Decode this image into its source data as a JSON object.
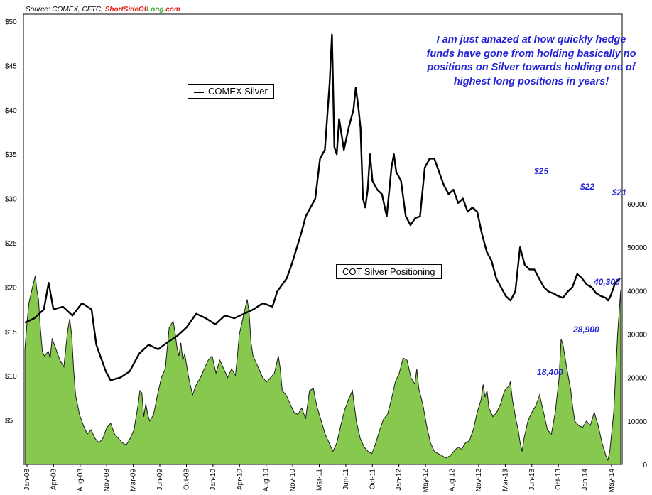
{
  "source": {
    "prefix": "Source: COMEX, CFTC, ",
    "brand_a": "ShortSideOf",
    "brand_b": "Long",
    "brand_c": ".com"
  },
  "annotation": "I am just amazed  at how quickly hedge funds have gone from holding basically no positions on Silver towards holding one of highest long positions in years!",
  "colors": {
    "silver_line": "#000000",
    "cot_fill": "#86c94e",
    "cot_stroke": "#1a1a1a",
    "annotation": "#2323d6"
  },
  "chart_data": {
    "type": "line+area",
    "legend": {
      "silver": "COMEX Silver",
      "cot": "COT Silver Positioning"
    },
    "left_axis_ticks": [
      "$50",
      "$45",
      "$40",
      "$35",
      "$30",
      "$25",
      "$20",
      "$15",
      "$10",
      "$5"
    ],
    "right_axis_ticks": [
      "60000",
      "50000",
      "40000",
      "30000",
      "20000",
      "10000",
      "0"
    ],
    "x_ticks": [
      "Jan-08",
      "Apr-08",
      "Aug-08",
      "Nov-08",
      "Mar-09",
      "Jun-09",
      "Oct-09",
      "Jan-10",
      "Apr-10",
      "Aug-10",
      "Nov-10",
      "Mar-11",
      "Jun-11",
      "Oct-11",
      "Jan-12",
      "May-12",
      "Aug-12",
      "Nov-12",
      "Mar-13",
      "Jun-13",
      "Oct-13",
      "Jan-14",
      "May-14"
    ],
    "silver_ylim": [
      0,
      50
    ],
    "cot_ylim": [
      0,
      60000
    ],
    "silver": [
      [
        0,
        16
      ],
      [
        2,
        16.5
      ],
      [
        4,
        17.5
      ],
      [
        5,
        20.5
      ],
      [
        6,
        17.5
      ],
      [
        8,
        17.8
      ],
      [
        10,
        16.8
      ],
      [
        12,
        18.2
      ],
      [
        14,
        17.5
      ],
      [
        15,
        13.5
      ],
      [
        17,
        10.5
      ],
      [
        18,
        9.5
      ],
      [
        20,
        9.8
      ],
      [
        22,
        10.5
      ],
      [
        24,
        12.5
      ],
      [
        26,
        13.5
      ],
      [
        28,
        13
      ],
      [
        30,
        13.8
      ],
      [
        32,
        14.5
      ],
      [
        34,
        15.5
      ],
      [
        36,
        17
      ],
      [
        38,
        16.5
      ],
      [
        40,
        15.8
      ],
      [
        42,
        16.8
      ],
      [
        44,
        16.5
      ],
      [
        46,
        17
      ],
      [
        48,
        17.5
      ],
      [
        50,
        18.2
      ],
      [
        52,
        17.8
      ],
      [
        53,
        19.5
      ],
      [
        55,
        21
      ],
      [
        56,
        22.5
      ],
      [
        58,
        26
      ],
      [
        59,
        28
      ],
      [
        61,
        30
      ],
      [
        62,
        34.5
      ],
      [
        63,
        35.5
      ],
      [
        64,
        43
      ],
      [
        64.5,
        48.5
      ],
      [
        65,
        35.8
      ],
      [
        65.5,
        35
      ],
      [
        66,
        39
      ],
      [
        67,
        35.5
      ],
      [
        68,
        38
      ],
      [
        69,
        40
      ],
      [
        69.5,
        42.5
      ],
      [
        70,
        40.5
      ],
      [
        70.5,
        38
      ],
      [
        71,
        30
      ],
      [
        71.5,
        29
      ],
      [
        72,
        31
      ],
      [
        72.5,
        35
      ],
      [
        73,
        32
      ],
      [
        74,
        31
      ],
      [
        75,
        30.5
      ],
      [
        76,
        28
      ],
      [
        77,
        33.5
      ],
      [
        77.5,
        35
      ],
      [
        78,
        33
      ],
      [
        79,
        32
      ],
      [
        80,
        28
      ],
      [
        81,
        27
      ],
      [
        82,
        27.8
      ],
      [
        83,
        28
      ],
      [
        84,
        33.5
      ],
      [
        85,
        34.5
      ],
      [
        86,
        34.5
      ],
      [
        87,
        33
      ],
      [
        88,
        31.5
      ],
      [
        89,
        30.5
      ],
      [
        90,
        31
      ],
      [
        91,
        29.5
      ],
      [
        92,
        30
      ],
      [
        93,
        28.5
      ],
      [
        94,
        29
      ],
      [
        95,
        28.5
      ],
      [
        96,
        26
      ],
      [
        97,
        24
      ],
      [
        98,
        23
      ],
      [
        99,
        21
      ],
      [
        100,
        20
      ],
      [
        101,
        19
      ],
      [
        102,
        18.5
      ],
      [
        103,
        19.5
      ],
      [
        104,
        24.5
      ],
      [
        105,
        22.5
      ],
      [
        106,
        22
      ],
      [
        107,
        22
      ],
      [
        108,
        21
      ],
      [
        109,
        20
      ],
      [
        110,
        19.5
      ],
      [
        111,
        19.3
      ],
      [
        112,
        19
      ],
      [
        113,
        18.8
      ],
      [
        114,
        19.5
      ],
      [
        115,
        20
      ],
      [
        116,
        21.5
      ],
      [
        117,
        21
      ],
      [
        118,
        20.3
      ],
      [
        119,
        20
      ],
      [
        120,
        19.3
      ],
      [
        121,
        19
      ],
      [
        122,
        18.8
      ],
      [
        122.5,
        18.5
      ],
      [
        123,
        19
      ],
      [
        124,
        20.5
      ],
      [
        125,
        21
      ]
    ],
    "cot": [
      [
        0,
        26.5
      ],
      [
        0.5,
        32
      ],
      [
        1,
        37
      ],
      [
        2,
        41
      ],
      [
        2.7,
        43.5
      ],
      [
        3,
        40.5
      ],
      [
        3.5,
        38
      ],
      [
        4,
        31
      ],
      [
        4.5,
        26
      ],
      [
        5,
        25
      ],
      [
        6,
        26
      ],
      [
        6.5,
        24.5
      ],
      [
        7,
        29
      ],
      [
        8,
        26.5
      ],
      [
        9,
        24
      ],
      [
        10,
        22.5
      ],
      [
        11,
        31
      ],
      [
        11.5,
        33.5
      ],
      [
        12,
        30
      ],
      [
        12.5,
        22
      ],
      [
        13,
        16
      ],
      [
        14,
        11.5
      ],
      [
        15,
        9
      ],
      [
        16,
        7
      ],
      [
        17,
        8
      ],
      [
        18,
        6
      ],
      [
        19,
        5
      ],
      [
        20,
        6
      ],
      [
        21,
        8.5
      ],
      [
        22,
        9.5
      ],
      [
        23,
        7
      ],
      [
        24,
        6
      ],
      [
        25,
        5
      ],
      [
        26,
        4.5
      ],
      [
        27,
        6
      ],
      [
        28,
        8
      ],
      [
        29,
        13.5
      ],
      [
        29.5,
        17
      ],
      [
        30,
        16.5
      ],
      [
        30.5,
        11
      ],
      [
        31,
        14
      ],
      [
        31.5,
        11.5
      ],
      [
        32,
        10
      ],
      [
        33,
        11.5
      ],
      [
        34,
        16
      ],
      [
        35,
        20
      ],
      [
        36,
        22
      ],
      [
        37,
        31.5
      ],
      [
        38,
        33
      ],
      [
        38.5,
        30.5
      ],
      [
        39,
        27
      ],
      [
        39.5,
        25
      ],
      [
        40,
        28
      ],
      [
        40.5,
        24
      ],
      [
        41,
        25.5
      ],
      [
        42,
        20
      ],
      [
        43,
        16
      ],
      [
        44,
        18.5
      ],
      [
        45,
        20
      ],
      [
        46,
        22
      ],
      [
        47,
        24
      ],
      [
        48,
        25
      ],
      [
        49,
        21
      ],
      [
        50,
        24
      ],
      [
        51,
        22
      ],
      [
        52,
        20
      ],
      [
        53,
        22
      ],
      [
        54,
        20.5
      ],
      [
        54.5,
        25
      ],
      [
        55,
        30
      ],
      [
        56,
        34
      ],
      [
        57,
        38
      ],
      [
        57.5,
        35
      ],
      [
        58,
        28
      ],
      [
        58.5,
        25
      ],
      [
        59,
        24
      ],
      [
        60,
        22
      ],
      [
        61,
        20
      ],
      [
        62,
        19
      ],
      [
        63,
        20
      ],
      [
        64,
        21
      ],
      [
        65,
        25
      ],
      [
        65.5,
        22
      ],
      [
        66,
        17
      ],
      [
        67,
        16
      ],
      [
        68,
        14
      ],
      [
        69,
        12
      ],
      [
        70,
        11.5
      ],
      [
        71,
        13
      ],
      [
        72,
        10.5
      ],
      [
        73,
        17
      ],
      [
        74,
        17.5
      ],
      [
        74.5,
        15
      ],
      [
        75,
        13
      ],
      [
        76,
        10
      ],
      [
        77,
        7
      ],
      [
        78,
        5
      ],
      [
        79,
        3
      ],
      [
        80,
        5
      ],
      [
        81,
        9
      ],
      [
        82,
        12.5
      ],
      [
        83,
        15
      ],
      [
        84,
        17
      ],
      [
        85,
        10
      ],
      [
        86,
        6
      ],
      [
        87,
        4
      ],
      [
        88,
        3
      ],
      [
        89,
        2.5
      ],
      [
        90,
        5
      ],
      [
        91,
        8
      ],
      [
        92,
        10.5
      ],
      [
        93,
        11.5
      ],
      [
        94,
        15
      ],
      [
        95,
        19
      ],
      [
        96,
        21
      ],
      [
        97,
        24.5
      ],
      [
        98,
        24
      ],
      [
        99,
        20
      ],
      [
        100,
        18.5
      ],
      [
        100.5,
        22
      ],
      [
        101,
        17.5
      ],
      [
        102,
        14
      ],
      [
        103,
        9
      ],
      [
        104,
        5
      ],
      [
        105,
        3
      ],
      [
        106,
        2.5
      ],
      [
        107,
        2
      ],
      [
        108,
        1.5
      ],
      [
        109,
        2
      ],
      [
        110,
        3
      ],
      [
        111,
        4
      ],
      [
        112,
        3.5
      ],
      [
        113,
        5
      ],
      [
        114,
        5.5
      ],
      [
        115,
        8
      ],
      [
        116,
        12
      ],
      [
        117,
        15
      ],
      [
        117.5,
        18.4
      ],
      [
        118,
        15.5
      ],
      [
        118.5,
        17
      ],
      [
        119,
        13
      ],
      [
        120,
        11
      ],
      [
        121,
        12
      ],
      [
        122,
        14
      ],
      [
        123,
        17
      ],
      [
        124,
        18
      ],
      [
        124.5,
        19
      ],
      [
        125,
        15
      ],
      [
        126,
        10
      ],
      [
        126.5,
        8
      ],
      [
        127,
        5
      ],
      [
        127.5,
        3
      ],
      [
        128,
        6
      ],
      [
        129,
        10
      ],
      [
        130,
        12
      ],
      [
        131,
        13.5
      ],
      [
        132,
        16
      ],
      [
        133,
        12
      ],
      [
        134,
        8
      ],
      [
        135,
        7
      ],
      [
        136,
        12
      ],
      [
        137,
        20
      ],
      [
        137.5,
        28.9
      ],
      [
        138,
        27.5
      ],
      [
        139,
        22
      ],
      [
        140,
        17
      ],
      [
        140.5,
        13
      ],
      [
        141,
        10
      ],
      [
        142,
        9
      ],
      [
        143,
        8.5
      ],
      [
        144,
        10
      ],
      [
        145,
        9
      ],
      [
        146,
        12
      ],
      [
        147,
        9
      ],
      [
        148,
        5
      ],
      [
        149,
        2
      ],
      [
        149.5,
        1
      ],
      [
        150,
        3
      ],
      [
        151,
        12
      ],
      [
        152,
        30
      ],
      [
        152.8,
        40.3
      ]
    ],
    "annotations": {
      "s25": "$25",
      "s22": "$22",
      "s21": "$21",
      "c18": "18,400",
      "c28": "28,900",
      "c40": "40,300"
    }
  }
}
